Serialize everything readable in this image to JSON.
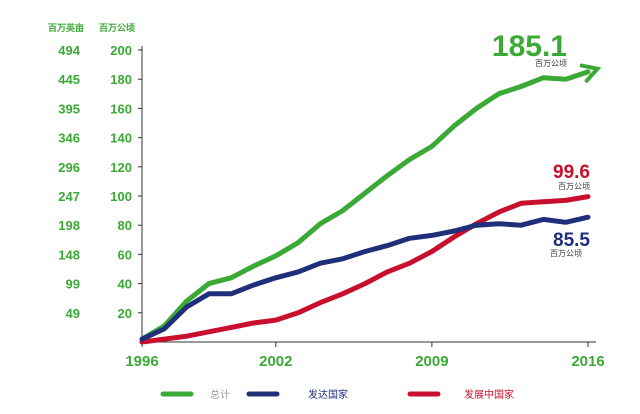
{
  "chart_data": {
    "type": "line",
    "left_axis_unit": "百万英亩",
    "right_axis_unit": "百万公顷",
    "left_ticks": [
      "494",
      "445",
      "395",
      "346",
      "296",
      "247",
      "198",
      "148",
      "99",
      "49"
    ],
    "ylim": [
      0,
      200
    ],
    "y_ticks": [
      20,
      40,
      60,
      80,
      100,
      120,
      140,
      160,
      180,
      200
    ],
    "xlim": [
      1996,
      2016
    ],
    "x_ticks": [
      1996,
      2002,
      2009,
      2016
    ],
    "series": [
      {
        "name": "总计",
        "color": "#3aa935",
        "label_value": "185.1",
        "label_unit": "百万公顷",
        "x": [
          1996,
          1997,
          1998,
          1999,
          2000,
          2001,
          2002,
          2003,
          2004,
          2005,
          2006,
          2007,
          2008,
          2009,
          2010,
          2011,
          2012,
          2013,
          2014,
          2015,
          2016
        ],
        "values": [
          2,
          11,
          28,
          40,
          44,
          52,
          59,
          68,
          81,
          90,
          102,
          114,
          125,
          134,
          148,
          160,
          170,
          175,
          181,
          180,
          185
        ]
      },
      {
        "name": "发达国家",
        "color": "#1f2f7a",
        "label_value": "85.5",
        "label_unit": "百万公顷",
        "x": [
          1996,
          1997,
          1998,
          1999,
          2000,
          2001,
          2002,
          2003,
          2004,
          2005,
          2006,
          2007,
          2008,
          2009,
          2010,
          2011,
          2012,
          2013,
          2014,
          2015,
          2016
        ],
        "values": [
          2,
          9,
          24,
          33,
          33,
          39,
          44,
          48,
          54,
          57,
          62,
          66,
          71,
          73,
          76,
          80,
          81,
          80,
          84,
          82,
          85.5
        ]
      },
      {
        "name": "发展中国家",
        "color": "#c8102e",
        "label_value": "99.6",
        "label_unit": "百万公顷",
        "x": [
          1996,
          1997,
          1998,
          1999,
          2000,
          2001,
          2002,
          2003,
          2004,
          2005,
          2006,
          2007,
          2008,
          2009,
          2010,
          2011,
          2012,
          2013,
          2014,
          2015,
          2016
        ],
        "values": [
          0,
          2,
          4,
          7,
          10,
          13,
          15,
          20,
          27,
          33,
          40,
          48,
          54,
          62,
          72,
          81,
          89,
          95,
          96,
          97,
          99.6
        ]
      }
    ],
    "grid": false,
    "legend_position": "bottom"
  }
}
